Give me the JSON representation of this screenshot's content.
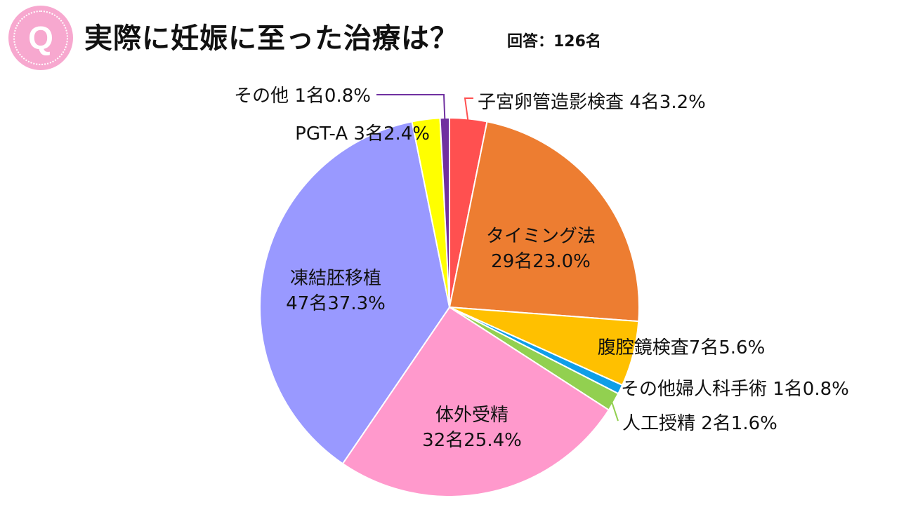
{
  "header": {
    "badge_letter": "Q",
    "title": "実際に妊娠に至った治療は？",
    "respondents": "回答：126名"
  },
  "colors": {
    "badge": "#f7a8cf"
  },
  "chart_data": {
    "type": "pie",
    "total": 126,
    "start": "top, clockwise",
    "slices": [
      {
        "label": "子宮卵管造影検査",
        "count": 4,
        "count_text": "4名",
        "percent_text": "3.2%",
        "percent": 3.2,
        "color": "#ff5050"
      },
      {
        "label": "タイミング法",
        "count": 29,
        "count_text": "29名",
        "percent_text": "23.0%",
        "percent": 23.0,
        "color": "#ed7d31"
      },
      {
        "label": "腹腔鏡検査",
        "count": 7,
        "count_text": "7名",
        "percent_text": "5.6%",
        "percent": 5.6,
        "color": "#ffc000"
      },
      {
        "label": "その他婦人科手術",
        "count": 1,
        "count_text": "1名",
        "percent_text": "0.8%",
        "percent": 0.8,
        "color": "#0f9ee8"
      },
      {
        "label": "人工授精",
        "count": 2,
        "count_text": "2名",
        "percent_text": "1.6%",
        "percent": 1.6,
        "color": "#92d050"
      },
      {
        "label": "体外受精",
        "count": 32,
        "count_text": "32名",
        "percent_text": "25.4%",
        "percent": 25.4,
        "color": "#ff99cc"
      },
      {
        "label": "凍結胚移植",
        "count": 47,
        "count_text": "47名",
        "percent_text": "37.3%",
        "percent": 37.3,
        "color": "#9999ff"
      },
      {
        "label": "PGT-A",
        "count": 3,
        "count_text": "3名",
        "percent_text": "2.4%",
        "percent": 2.4,
        "color": "#ffff00"
      },
      {
        "label": "その他",
        "count": 1,
        "count_text": "1名",
        "percent_text": "0.8%",
        "percent": 0.8,
        "color": "#7030a0"
      }
    ]
  }
}
